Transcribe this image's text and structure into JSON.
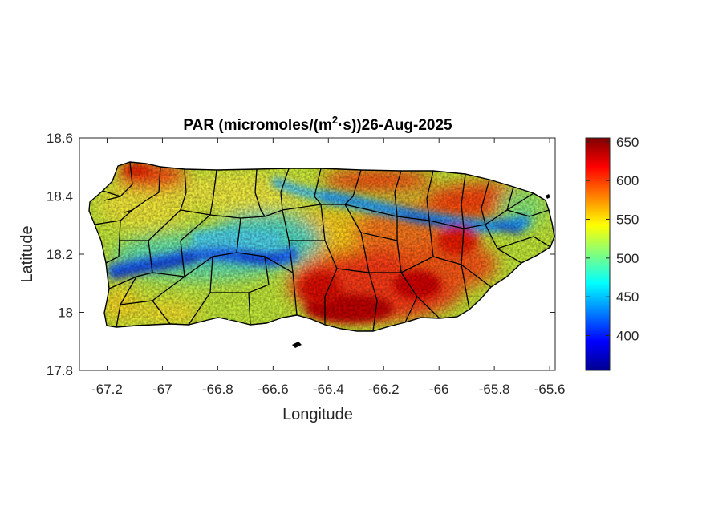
{
  "chart_data": {
    "type": "heatmap",
    "title_main": "PAR (micromoles/(m",
    "title_sup": "2",
    "title_rest": "·s))26-Aug-2025",
    "xlabel": "Longitude",
    "ylabel": "Latitude",
    "xlim": [
      -67.3,
      -65.58
    ],
    "ylim": [
      17.8,
      18.6
    ],
    "xticks": [
      -67.2,
      -67,
      -66.8,
      -66.6,
      -66.4,
      -66.2,
      -66,
      -65.8,
      -65.6
    ],
    "xtick_labels": [
      "-67.2",
      "-67",
      "-66.8",
      "-66.6",
      "-66.4",
      "-66.2",
      "-66",
      "-65.8",
      "-65.6"
    ],
    "yticks": [
      17.8,
      18,
      18.2,
      18.4,
      18.6
    ],
    "ytick_labels": [
      "17.8",
      "18",
      "18.2",
      "18.4",
      "18.6"
    ],
    "colorbar": {
      "colormap": "jet",
      "clim": [
        355,
        655
      ],
      "ticks": [
        400,
        450,
        500,
        550,
        600,
        650
      ],
      "tick_labels": [
        "400",
        "450",
        "500",
        "550",
        "600",
        "650"
      ]
    },
    "grid": false
  }
}
